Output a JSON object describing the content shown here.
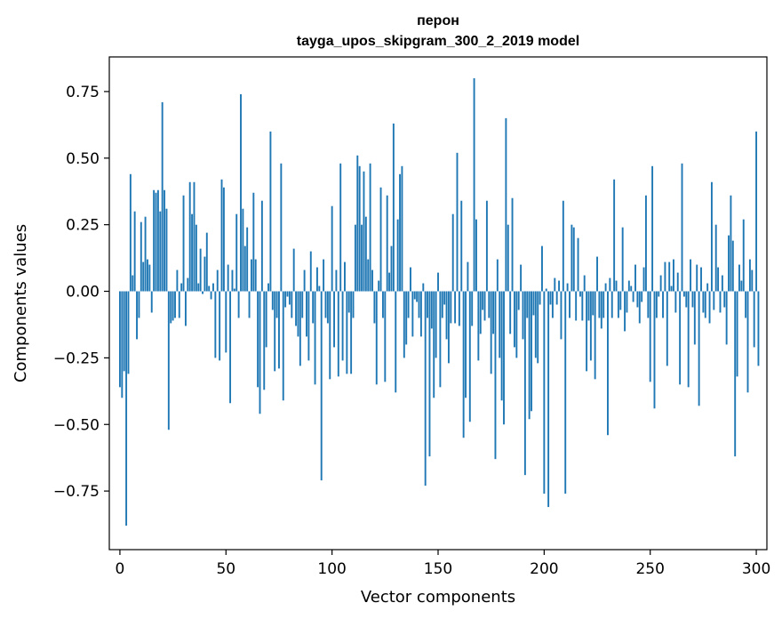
{
  "chart_data": {
    "type": "bar",
    "title_line1": "перон",
    "title_line2": "tayga_upos_skipgram_300_2_2019 model",
    "xlabel": "Vector components",
    "ylabel": "Components values",
    "xlim": [
      -5,
      305
    ],
    "ylim": [
      -0.97,
      0.88
    ],
    "xticks": [
      0,
      50,
      100,
      150,
      200,
      250,
      300
    ],
    "yticks": [
      -0.75,
      -0.5,
      -0.25,
      0.0,
      0.25,
      0.5,
      0.75
    ],
    "ytick_labels": [
      "−0.75",
      "−0.50",
      "−0.25",
      "0.00",
      "0.25",
      "0.50",
      "0.75"
    ],
    "bar_color": "#1f77b4",
    "grid": false,
    "values": [
      -0.36,
      -0.4,
      -0.3,
      -0.88,
      -0.31,
      0.44,
      0.06,
      0.3,
      -0.18,
      -0.1,
      0.26,
      0.11,
      0.28,
      0.12,
      0.1,
      -0.08,
      0.38,
      0.37,
      0.38,
      0.3,
      0.71,
      0.38,
      0.31,
      -0.52,
      -0.12,
      -0.11,
      -0.1,
      0.08,
      -0.1,
      0.03,
      0.36,
      -0.13,
      0.05,
      0.41,
      0.29,
      0.41,
      0.25,
      0.03,
      0.16,
      -0.01,
      0.13,
      0.22,
      0.02,
      -0.03,
      0.03,
      -0.25,
      0.08,
      -0.26,
      0.42,
      0.39,
      -0.23,
      0.1,
      -0.42,
      0.08,
      0.01,
      0.29,
      -0.1,
      0.74,
      0.31,
      0.17,
      0.24,
      -0.1,
      0.12,
      0.37,
      0.12,
      -0.36,
      -0.46,
      0.34,
      -0.37,
      -0.21,
      0.03,
      0.6,
      -0.07,
      -0.3,
      -0.1,
      -0.29,
      0.48,
      -0.41,
      -0.06,
      -0.02,
      -0.05,
      -0.1,
      0.16,
      -0.13,
      -0.17,
      -0.28,
      -0.1,
      0.08,
      -0.17,
      -0.26,
      0.15,
      -0.12,
      -0.35,
      0.09,
      0.02,
      -0.71,
      0.12,
      -0.1,
      -0.12,
      -0.33,
      0.32,
      -0.21,
      0.08,
      -0.32,
      0.48,
      -0.26,
      0.11,
      -0.31,
      -0.08,
      -0.31,
      -0.1,
      0.25,
      0.51,
      0.47,
      0.25,
      0.45,
      0.28,
      0.12,
      0.48,
      0.08,
      -0.12,
      -0.35,
      0.04,
      0.39,
      -0.1,
      -0.34,
      0.36,
      0.07,
      0.17,
      0.63,
      -0.38,
      0.27,
      0.44,
      0.47,
      -0.25,
      -0.2,
      -0.1,
      0.09,
      -0.17,
      -0.03,
      -0.04,
      -0.1,
      -0.17,
      0.03,
      -0.73,
      -0.1,
      -0.62,
      -0.14,
      -0.4,
      -0.25,
      0.07,
      -0.36,
      -0.1,
      -0.05,
      -0.18,
      -0.27,
      -0.12,
      0.29,
      -0.12,
      0.52,
      -0.13,
      0.34,
      -0.55,
      -0.4,
      0.11,
      -0.49,
      -0.13,
      0.8,
      0.27,
      -0.26,
      -0.16,
      -0.07,
      -0.11,
      0.34,
      -0.1,
      -0.31,
      -0.16,
      -0.63,
      0.12,
      -0.25,
      -0.41,
      -0.5,
      0.65,
      0.25,
      -0.16,
      0.35,
      -0.21,
      -0.25,
      -0.07,
      0.1,
      -0.18,
      -0.69,
      -0.1,
      -0.48,
      -0.45,
      -0.09,
      -0.25,
      -0.27,
      -0.05,
      0.17,
      -0.76,
      0.01,
      -0.81,
      -0.05,
      -0.1,
      0.05,
      -0.05,
      0.04,
      -0.18,
      0.34,
      -0.76,
      0.03,
      -0.1,
      0.25,
      0.24,
      -0.11,
      0.2,
      -0.02,
      -0.11,
      0.06,
      -0.3,
      -0.11,
      -0.26,
      -0.09,
      -0.33,
      0.13,
      -0.1,
      -0.14,
      -0.1,
      0.03,
      -0.54,
      0.05,
      -0.1,
      0.42,
      0.04,
      -0.1,
      -0.07,
      0.24,
      -0.15,
      -0.08,
      0.04,
      0.02,
      -0.04,
      0.1,
      -0.06,
      -0.12,
      -0.04,
      0.09,
      0.36,
      -0.1,
      -0.34,
      0.47,
      -0.44,
      -0.1,
      -0.02,
      0.06,
      -0.1,
      0.11,
      -0.28,
      0.11,
      0.02,
      0.12,
      -0.08,
      0.07,
      -0.35,
      0.48,
      -0.02,
      -0.06,
      -0.36,
      0.12,
      -0.06,
      -0.2,
      0.1,
      -0.43,
      0.09,
      -0.08,
      -0.1,
      0.03,
      -0.12,
      0.41,
      -0.07,
      0.25,
      0.09,
      -0.08,
      0.06,
      -0.06,
      -0.2,
      0.21,
      0.36,
      0.19,
      -0.62,
      -0.32,
      0.1,
      0.04,
      0.27,
      -0.1,
      -0.38,
      0.12,
      0.08,
      -0.21,
      0.6,
      -0.28
    ]
  }
}
